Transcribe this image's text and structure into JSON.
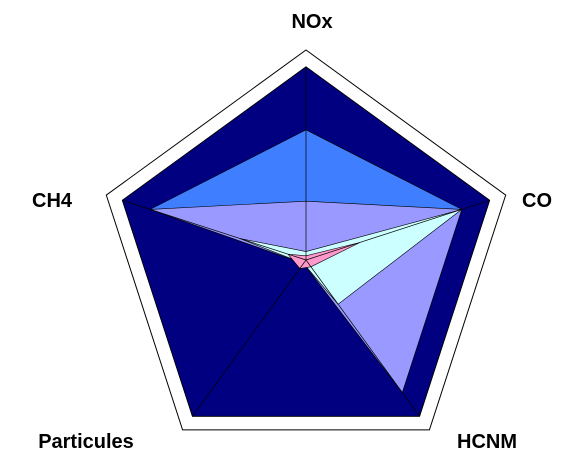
{
  "chart_data": {
    "type": "radar",
    "axes": [
      "NOx",
      "CO",
      "HCNM",
      "Particules",
      "CH4"
    ],
    "rmax": 1.0,
    "outer_frame": {
      "fill": "#ffffff",
      "stroke": "#000000"
    },
    "series": [
      {
        "values": [
          0.92,
          0.92,
          0.92,
          0.92,
          0.92
        ],
        "color": "#000080"
      },
      {
        "values": [
          0.62,
          0.78,
          0.78,
          0.02,
          0.78
        ],
        "color": "#3f7fff"
      },
      {
        "values": [
          0.28,
          0.78,
          0.78,
          0.02,
          0.78
        ],
        "color": "#9999ff"
      },
      {
        "values": [
          0.04,
          0.78,
          0.26,
          0.02,
          0.33
        ],
        "color": "#ccffff"
      },
      {
        "values": [
          0.02,
          0.27,
          0.04,
          0.05,
          0.09
        ],
        "color": "#ff99cc"
      }
    ]
  }
}
